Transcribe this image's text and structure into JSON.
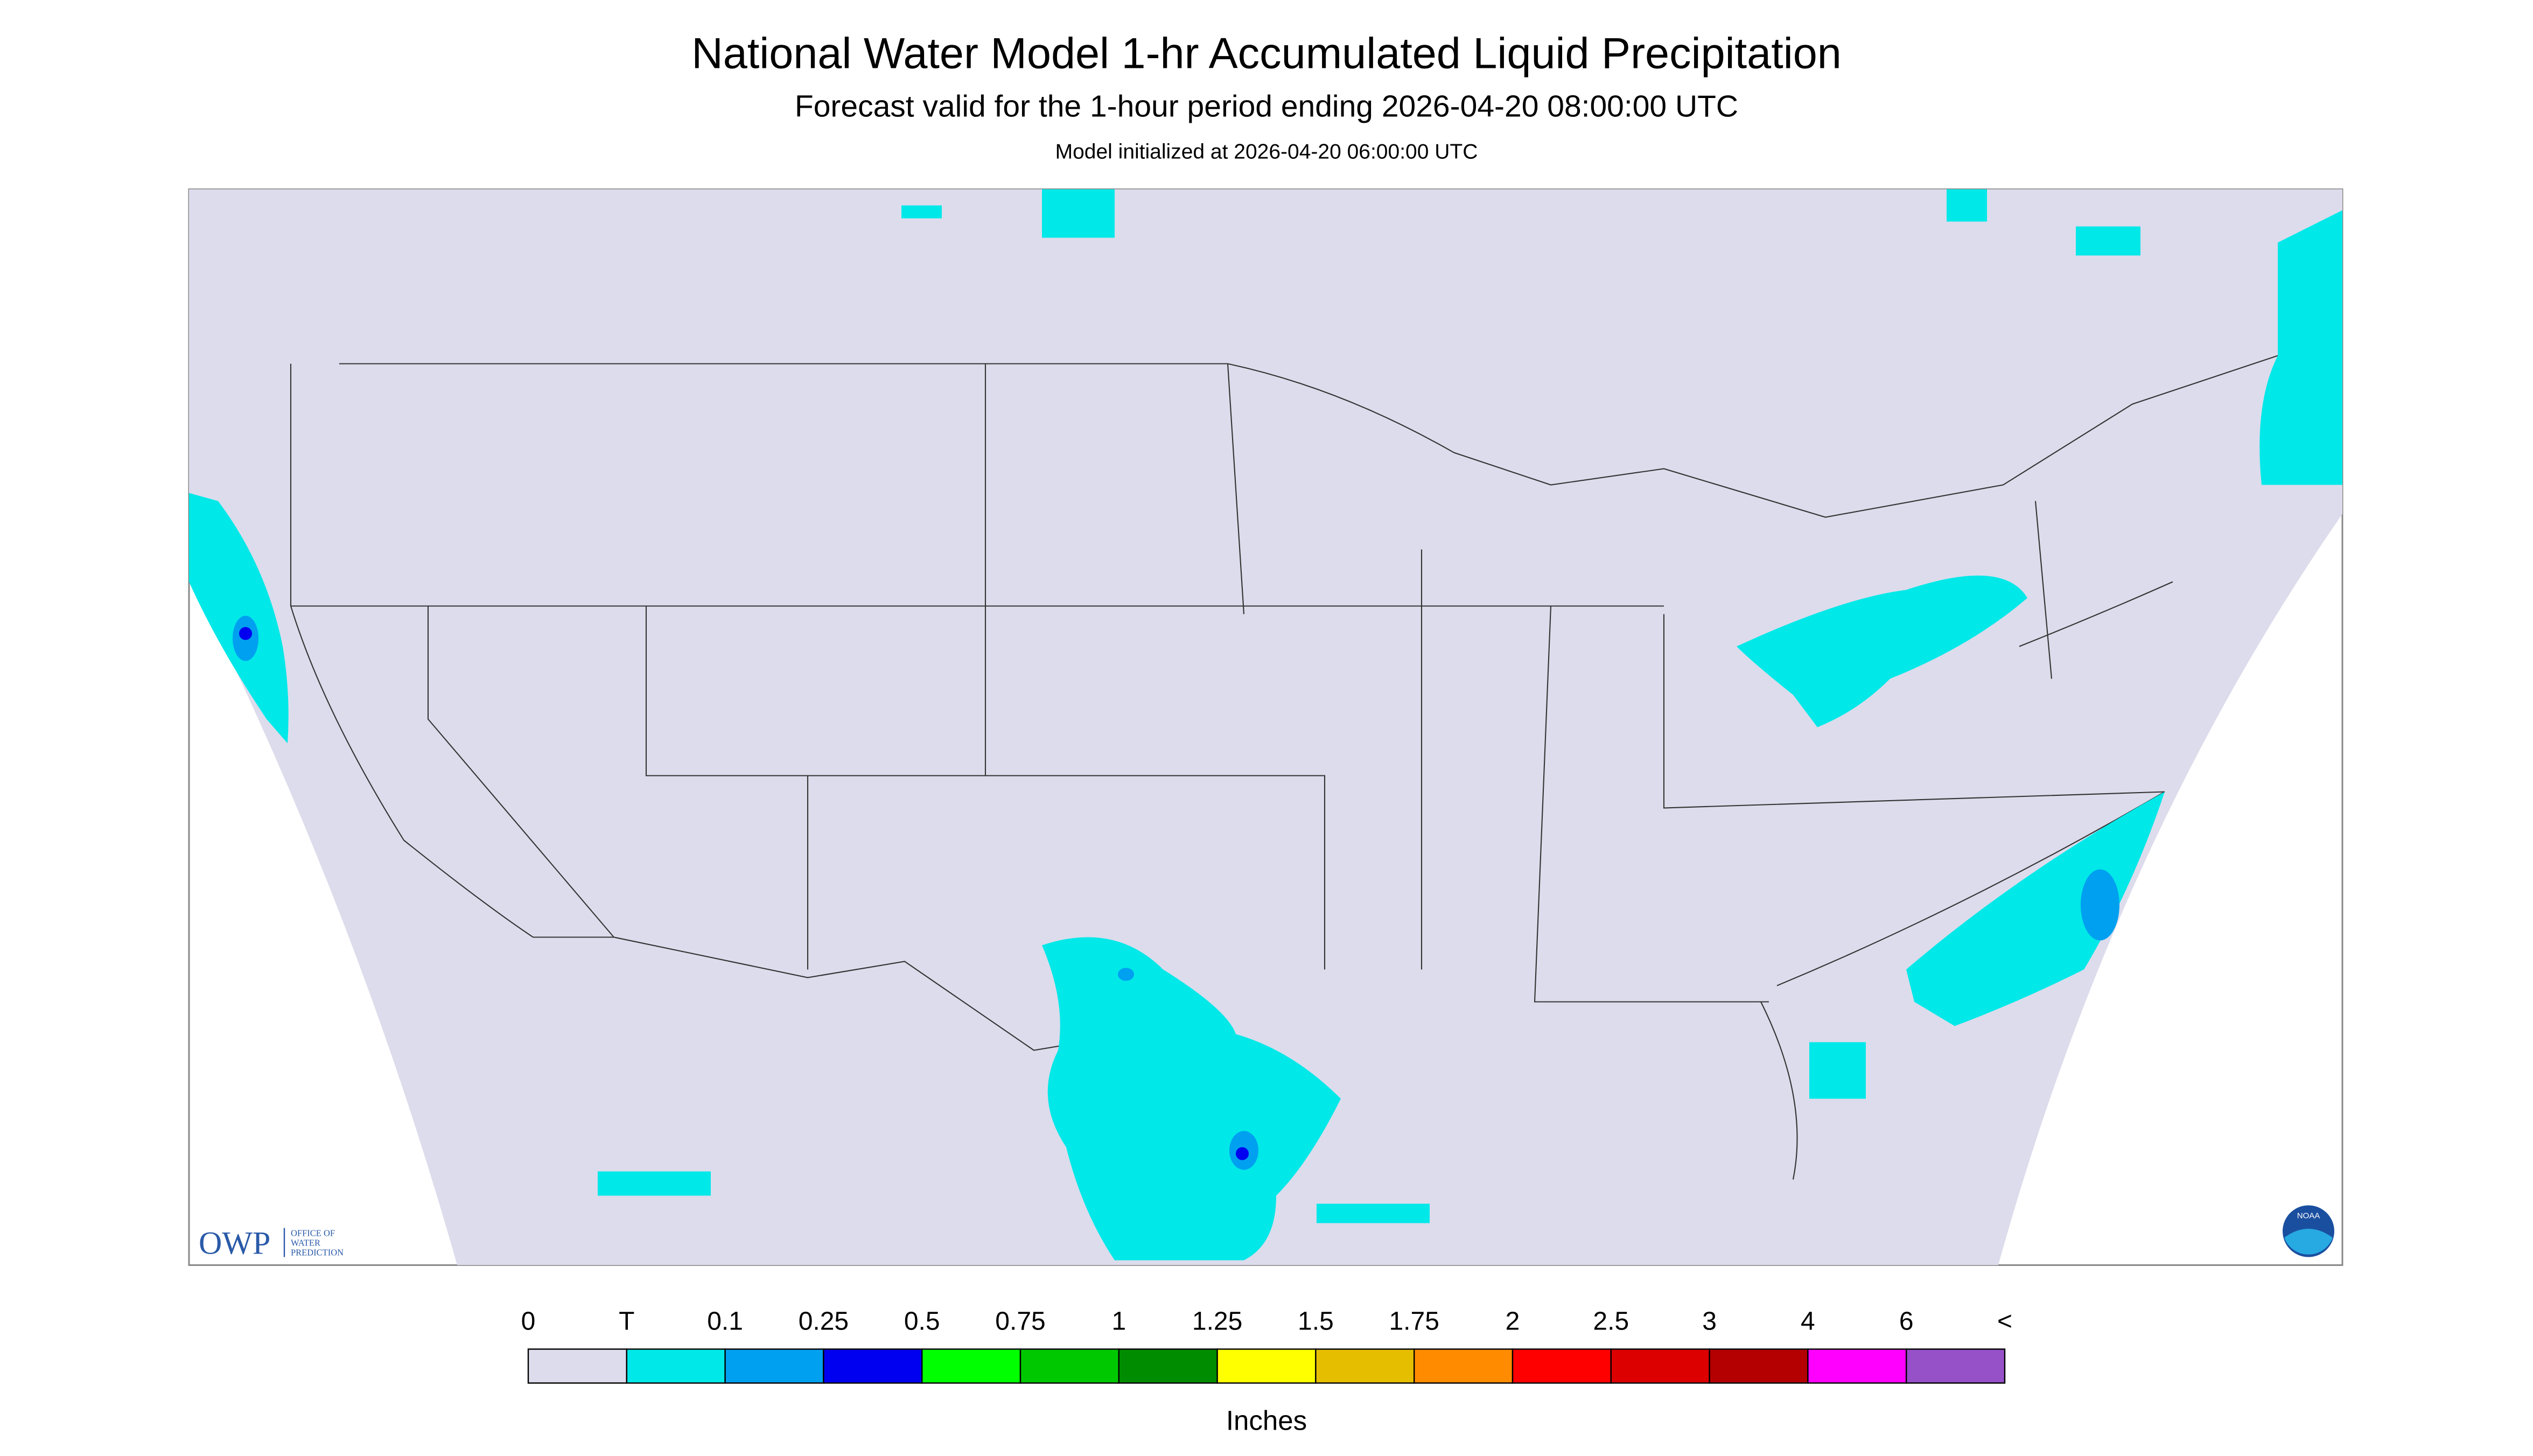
{
  "header": {
    "title": "National Water Model 1-hr Accumulated Liquid Precipitation",
    "subtitle": "Forecast valid for the 1-hour period ending 2026-04-20 08:00:00 UTC",
    "init": "Model initialized at 2026-04-20 06:00:00 UTC"
  },
  "legend": {
    "labels": [
      "0",
      "T",
      "0.1",
      "0.25",
      "0.5",
      "0.75",
      "1",
      "1.25",
      "1.5",
      "1.75",
      "2",
      "2.5",
      "3",
      "4",
      "6",
      "<"
    ],
    "colors": [
      "#dcdcec",
      "#00e8e8",
      "#00a0f0",
      "#0000f0",
      "#00ff00",
      "#00c800",
      "#008c00",
      "#ffff00",
      "#e6be00",
      "#ff8c00",
      "#ff0000",
      "#dc0000",
      "#b40000",
      "#ff00ff",
      "#9650c8"
    ],
    "units": "Inches"
  },
  "logos": {
    "owp": "OWP",
    "owp_lines": [
      "OFFICE OF",
      "WATER",
      "PREDICTION"
    ],
    "noaa": "NOAA"
  }
}
